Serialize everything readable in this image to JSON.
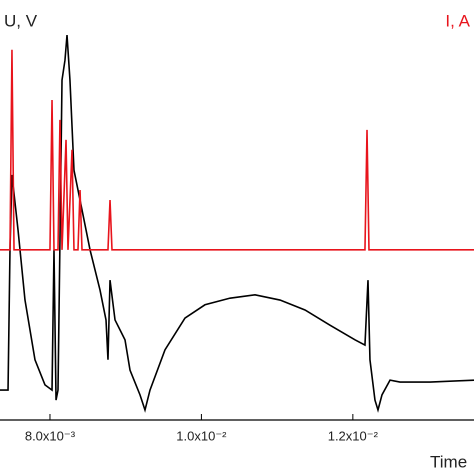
{
  "chart_data": {
    "type": "line",
    "ylabel": "U, V",
    "y2label": "I, A",
    "xlabel": "Time",
    "xlim": [
      0.00734,
      0.0136
    ],
    "ylim": [
      0,
      100
    ],
    "y2lim": [
      0,
      100
    ],
    "xticks": [
      {
        "value": 0.008,
        "label": "8.0x10⁻³"
      },
      {
        "value": 0.01,
        "label": "1.0x10⁻²"
      },
      {
        "value": 0.012,
        "label": "1.2x10⁻²"
      }
    ],
    "series": [
      {
        "name": "U",
        "color": "#000000",
        "x": [
          0.00734,
          0.007446,
          0.007472,
          0.007498,
          0.007578,
          0.00767,
          0.007802,
          0.007934,
          0.008027,
          0.008053,
          0.00808,
          0.008106,
          0.008132,
          0.008159,
          0.008198,
          0.008225,
          0.008264,
          0.008317,
          0.008397,
          0.008529,
          0.008661,
          0.00874,
          0.008766,
          0.008793,
          0.008859,
          0.008925,
          0.008991,
          0.009057,
          0.009189,
          0.009255,
          0.009321,
          0.009519,
          0.009783,
          0.010047,
          0.010378,
          0.010708,
          0.011038,
          0.011368,
          0.011698,
          0.012028,
          0.01216,
          0.0122,
          0.012226,
          0.012292,
          0.012332,
          0.012385,
          0.012491,
          0.012623,
          0.013019,
          0.0136
        ],
        "values": [
          17.7,
          17.7,
          47.3,
          63.1,
          51.5,
          36.7,
          24.1,
          18.8,
          17.7,
          47.3,
          15.6,
          17.7,
          49.4,
          83.1,
          87.3,
          92.6,
          83.1,
          64.1,
          57.8,
          47.3,
          38.8,
          32.5,
          24.1,
          40.9,
          32.5,
          30.4,
          28.3,
          21.9,
          16.7,
          13.5,
          17.7,
          26.2,
          32.9,
          35.7,
          37.1,
          37.8,
          36.7,
          34.6,
          31.4,
          28.3,
          27.2,
          40.9,
          24.1,
          15.6,
          13.5,
          16.7,
          19.8,
          19.4,
          19.4,
          19.8
        ]
      },
      {
        "name": "I",
        "color": "#e8141c",
        "axis": "y2",
        "x": [
          0.00734,
          0.007472,
          0.007498,
          0.007525,
          0.008,
          0.008027,
          0.008053,
          0.008106,
          0.008132,
          0.008159,
          0.008212,
          0.008238,
          0.008291,
          0.008317,
          0.00837,
          0.008397,
          0.008423,
          0.008766,
          0.008793,
          0.008819,
          0.01216,
          0.012187,
          0.012213,
          0.0136
        ],
        "values": [
          47.3,
          47.3,
          89.5,
          47.3,
          47.3,
          78.9,
          47.3,
          47.3,
          74.7,
          47.3,
          70.5,
          47.3,
          68.4,
          47.3,
          47.3,
          59.9,
          47.3,
          47.3,
          57.8,
          47.3,
          47.3,
          72.6,
          47.3,
          47.3
        ]
      }
    ]
  }
}
